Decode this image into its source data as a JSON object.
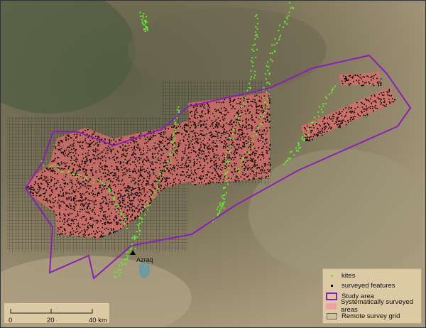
{
  "map": {
    "town_label": "Azraq",
    "colors": {
      "kites": "#5cf02a",
      "surveyed_features": "#000000",
      "study_area": "#8a1fb5",
      "systematic": "#e87070",
      "grid": "#333333"
    }
  },
  "legend": {
    "items": [
      {
        "label": "kites",
        "symbol": "green-dot-icon"
      },
      {
        "label": "surveyed features",
        "symbol": "black-dot-icon"
      },
      {
        "label": "Study area",
        "symbol": "purple-outline-box-icon"
      },
      {
        "label": "Systematically surveyed areas",
        "symbol": "pink-fill-box-icon"
      },
      {
        "label": "Remote survey grid",
        "symbol": "grey-outline-box-icon"
      }
    ]
  },
  "scale_bar": {
    "ticks": [
      "0",
      "20",
      "40 km"
    ]
  }
}
